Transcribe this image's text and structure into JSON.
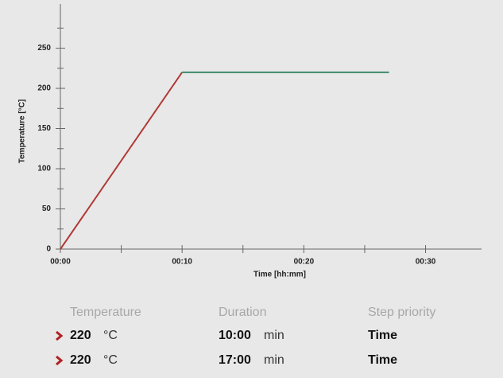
{
  "chart_data": {
    "type": "line",
    "ylabel": "Temperature [°C]",
    "xlabel": "Time [hh:mm]",
    "series": [
      {
        "color": "#b03a36",
        "x": [
          0,
          10
        ],
        "values": [
          0,
          220
        ]
      },
      {
        "color": "#3f8a6a",
        "x": [
          10,
          27
        ],
        "values": [
          220,
          220
        ]
      }
    ],
    "xlim": [
      0,
      34.6
    ],
    "ylim": [
      0,
      305
    ],
    "xticks": [
      {
        "value": 0,
        "label": "00:00"
      },
      {
        "value": 10,
        "label": "00:10"
      },
      {
        "value": 20,
        "label": "00:20"
      },
      {
        "value": 30,
        "label": "00:30"
      }
    ],
    "xminorticks": [
      5,
      15,
      25
    ],
    "yticks": [
      0,
      50,
      100,
      150,
      200,
      250
    ],
    "yminorticks": [
      25,
      75,
      125,
      175,
      225,
      275
    ],
    "grid": false
  },
  "table": {
    "header": [
      "Temperature",
      "Duration",
      "Step priority"
    ],
    "rows": [
      [
        "220",
        "°C",
        "10:00",
        "min",
        "Time"
      ],
      [
        "220",
        "°C",
        "17:00",
        "min",
        "Time"
      ]
    ]
  }
}
